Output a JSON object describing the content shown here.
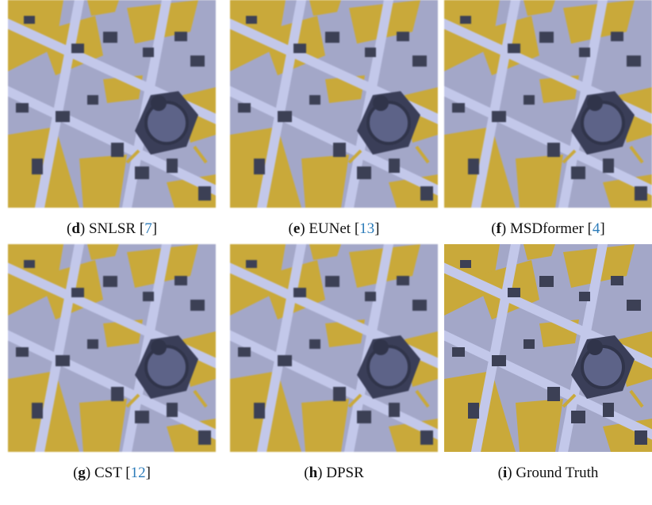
{
  "panels": [
    {
      "caption": [
        {
          "t": "("
        },
        {
          "t": "d",
          "bold": true
        },
        {
          "t": ") SNLSR ["
        },
        {
          "t": "7",
          "link": true
        },
        {
          "t": "]"
        }
      ]
    },
    {
      "caption": [
        {
          "t": "("
        },
        {
          "t": "e",
          "bold": true
        },
        {
          "t": ") EUNet ["
        },
        {
          "t": "13",
          "link": true
        },
        {
          "t": "]"
        }
      ]
    },
    {
      "caption": [
        {
          "t": "("
        },
        {
          "t": "f",
          "bold": true
        },
        {
          "t": ") MSDformer ["
        },
        {
          "t": "4",
          "link": true
        },
        {
          "t": "]"
        }
      ]
    },
    {
      "caption": [
        {
          "t": "("
        },
        {
          "t": "g",
          "bold": true
        },
        {
          "t": ") CST ["
        },
        {
          "t": "12",
          "link": true
        },
        {
          "t": "]"
        }
      ]
    },
    {
      "caption": [
        {
          "t": "("
        },
        {
          "t": "h",
          "bold": true
        },
        {
          "t": ") DPSR"
        }
      ]
    },
    {
      "caption": [
        {
          "t": "("
        },
        {
          "t": "i",
          "bold": true
        },
        {
          "t": ") Ground Truth"
        }
      ]
    }
  ]
}
